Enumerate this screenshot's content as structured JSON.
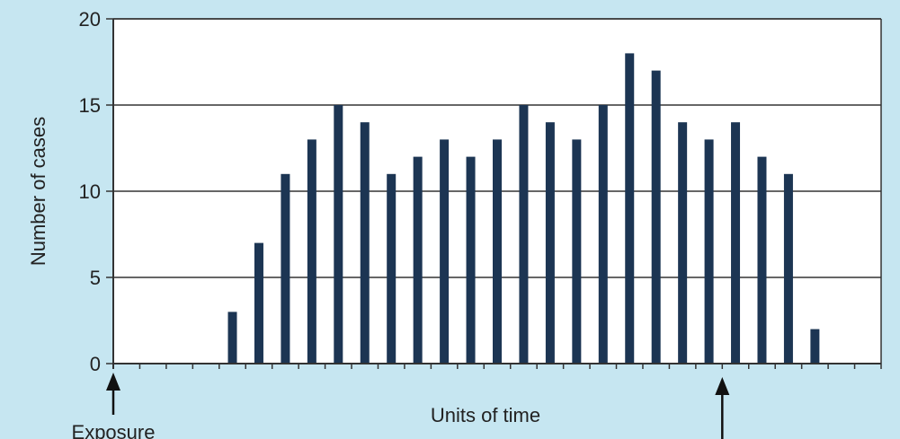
{
  "chart_data": {
    "type": "bar",
    "title": "",
    "xlabel": "Units of time",
    "ylabel": "Number of cases",
    "ylim": [
      0,
      20
    ],
    "yticks": [
      0,
      5,
      10,
      15,
      20
    ],
    "xlim": [
      0,
      29
    ],
    "x": [
      4.5,
      5.5,
      6.5,
      7.5,
      8.5,
      9.5,
      10.5,
      11.5,
      12.5,
      13.5,
      14.5,
      15.5,
      16.5,
      17.5,
      18.5,
      19.5,
      20.5,
      21.5,
      22.5,
      23.5,
      24.5,
      25.5,
      26.5
    ],
    "values": [
      3,
      7,
      11,
      13,
      15,
      14,
      11,
      12,
      13,
      12,
      13,
      15,
      14,
      13,
      15,
      18,
      17,
      14,
      13,
      14,
      12,
      11,
      2
    ],
    "grid": "horizontal",
    "annotations": [
      {
        "text": "Exposure",
        "x": 0,
        "marker": "arrow-up"
      },
      {
        "text": "",
        "x": 23,
        "marker": "arrow-up"
      }
    ],
    "colors": {
      "bars": "#1c3553",
      "background": "#c6e6f1",
      "plot": "#ffffff",
      "axis": "#333333"
    }
  }
}
